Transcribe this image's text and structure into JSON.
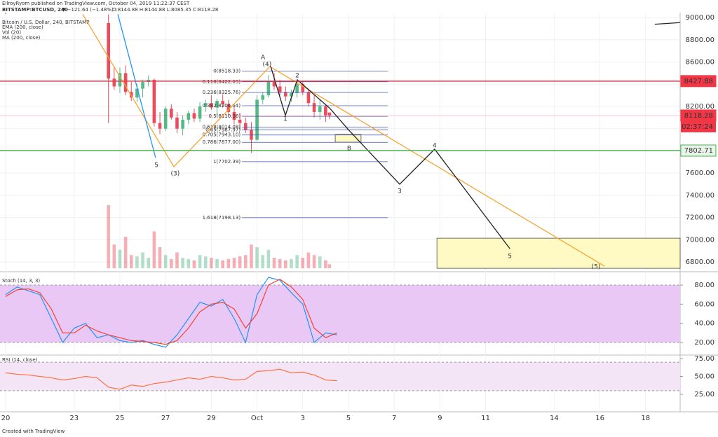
{
  "header": {
    "publisher": "EllroyRyom published on TradingView.com, October 04, 2019 11:22:37 CEST",
    "symbol": "BITSTAMP:BTCUSD, 240",
    "change": "▼ −121.64 (−1.48%)",
    "ohlc": "O:8144.88 H:8144.88 L:8085.35 C:8118.28"
  },
  "footer": "Created with TradingView",
  "chart_data": [
    {
      "type": "candlestick",
      "title": "Bitcoin / U.S. Dollar, 240, BITSTAMP",
      "indicators": [
        "EMA (200, close)",
        "Vol (20)",
        "MA (200, close)"
      ],
      "xlim": [
        -0.245,
        29.51
      ],
      "ylim": [
        6731,
        9032
      ],
      "yticks": [
        {
          "value": 9000,
          "label": "9000.00"
        },
        {
          "value": 8800,
          "label": "8800.00"
        },
        {
          "value": 8600,
          "label": "8600.00"
        },
        {
          "value": 8400,
          "label": "8400.00"
        },
        {
          "value": 8200,
          "label": "8200.00"
        },
        {
          "value": 8000,
          "label": "8000.00"
        },
        {
          "value": 7800,
          "label": "7800.00"
        },
        {
          "value": 7600,
          "label": "7600.00"
        },
        {
          "value": 7400,
          "label": "7400.00"
        },
        {
          "value": 7200,
          "label": "7200.00"
        },
        {
          "value": 7000,
          "label": "7000.00"
        },
        {
          "value": 6800,
          "label": "6800.00"
        }
      ],
      "up_color": "#53b987",
      "down_color": "#eb4d5c",
      "candles": [
        {
          "x": 4.5,
          "open": 8950,
          "high": 9030,
          "low": 8050,
          "close": 8450
        },
        {
          "x": 4.75,
          "open": 8450,
          "high": 8560,
          "low": 8350,
          "close": 8380
        },
        {
          "x": 5.0,
          "open": 8380,
          "high": 8550,
          "low": 8320,
          "close": 8500
        },
        {
          "x": 5.25,
          "open": 8500,
          "high": 8570,
          "low": 8300,
          "close": 8330
        },
        {
          "x": 5.5,
          "open": 8330,
          "high": 8420,
          "low": 8250,
          "close": 8280
        },
        {
          "x": 5.75,
          "open": 8280,
          "high": 8400,
          "low": 8240,
          "close": 8360
        },
        {
          "x": 6.0,
          "open": 8360,
          "high": 8440,
          "low": 8280,
          "close": 8420
        },
        {
          "x": 6.25,
          "open": 8420,
          "high": 8480,
          "low": 8380,
          "close": 8440
        },
        {
          "x": 6.5,
          "open": 8440,
          "high": 8450,
          "low": 8020,
          "close": 8050
        },
        {
          "x": 6.75,
          "open": 8050,
          "high": 8150,
          "low": 7950,
          "close": 8000
        },
        {
          "x": 7.0,
          "open": 8000,
          "high": 8200,
          "low": 7980,
          "close": 8180
        },
        {
          "x": 7.25,
          "open": 8180,
          "high": 8220,
          "low": 8080,
          "close": 8100
        },
        {
          "x": 7.5,
          "open": 8100,
          "high": 8150,
          "low": 7960,
          "close": 8000
        },
        {
          "x": 7.75,
          "open": 8000,
          "high": 8120,
          "low": 7940,
          "close": 8080
        },
        {
          "x": 8.0,
          "open": 8080,
          "high": 8160,
          "low": 8040,
          "close": 8140
        },
        {
          "x": 8.25,
          "open": 8140,
          "high": 8180,
          "low": 8060,
          "close": 8090
        },
        {
          "x": 8.5,
          "open": 8090,
          "high": 8240,
          "low": 8060,
          "close": 8200
        },
        {
          "x": 8.75,
          "open": 8200,
          "high": 8260,
          "low": 8150,
          "close": 8230
        },
        {
          "x": 9.0,
          "open": 8230,
          "high": 8300,
          "low": 8170,
          "close": 8190
        },
        {
          "x": 9.25,
          "open": 8190,
          "high": 8270,
          "low": 8120,
          "close": 8250
        },
        {
          "x": 9.5,
          "open": 8250,
          "high": 8310,
          "low": 8190,
          "close": 8220
        },
        {
          "x": 9.75,
          "open": 8220,
          "high": 8260,
          "low": 8120,
          "close": 8150
        },
        {
          "x": 10.0,
          "open": 8150,
          "high": 8200,
          "low": 8040,
          "close": 8080
        },
        {
          "x": 10.25,
          "open": 8080,
          "high": 8140,
          "low": 7990,
          "close": 8050
        },
        {
          "x": 10.5,
          "open": 8050,
          "high": 8100,
          "low": 7960,
          "close": 7990
        },
        {
          "x": 10.75,
          "open": 7990,
          "high": 8060,
          "low": 7780,
          "close": 7900
        },
        {
          "x": 11.0,
          "open": 7900,
          "high": 8300,
          "low": 7890,
          "close": 8260
        },
        {
          "x": 11.25,
          "open": 8260,
          "high": 8330,
          "low": 8220,
          "close": 8300
        },
        {
          "x": 11.5,
          "open": 8300,
          "high": 8480,
          "low": 8280,
          "close": 8420
        },
        {
          "x": 11.75,
          "open": 8420,
          "high": 8500,
          "low": 8350,
          "close": 8380
        },
        {
          "x": 12.0,
          "open": 8380,
          "high": 8440,
          "low": 8300,
          "close": 8330
        },
        {
          "x": 12.25,
          "open": 8330,
          "high": 8380,
          "low": 8250,
          "close": 8290
        },
        {
          "x": 12.5,
          "open": 8290,
          "high": 8350,
          "low": 8240,
          "close": 8320
        },
        {
          "x": 12.75,
          "open": 8320,
          "high": 8430,
          "low": 8280,
          "close": 8400
        },
        {
          "x": 13.0,
          "open": 8400,
          "high": 8420,
          "low": 8300,
          "close": 8330
        },
        {
          "x": 13.25,
          "open": 8330,
          "high": 8360,
          "low": 8200,
          "close": 8230
        },
        {
          "x": 13.5,
          "open": 8230,
          "high": 8300,
          "low": 8100,
          "close": 8150
        },
        {
          "x": 13.75,
          "open": 8150,
          "high": 8260,
          "low": 8080,
          "close": 8200
        },
        {
          "x": 14.0,
          "open": 8200,
          "high": 8220,
          "low": 8060,
          "close": 8120
        },
        {
          "x": 14.17,
          "open": 8144.88,
          "high": 8144.88,
          "low": 8085.35,
          "close": 8118.28
        }
      ],
      "volume": [
        2400,
        900,
        700,
        1200,
        500,
        450,
        600,
        400,
        1400,
        800,
        500,
        350,
        600,
        400,
        350,
        300,
        500,
        450,
        400,
        350,
        300,
        350,
        400,
        450,
        500,
        900,
        800,
        500,
        700,
        400,
        350,
        300,
        350,
        500,
        400,
        600,
        500,
        450,
        300,
        150
      ],
      "volume_ylim": [
        0,
        4000
      ],
      "lines": [
        {
          "color": "#f7a533",
          "x": [
            3.37,
            7.36,
            11.56,
            26.2
          ],
          "y": [
            9030,
            7657,
            8559,
            6762
          ]
        },
        {
          "color": "#2196f3",
          "x": [
            4.91,
            6.56
          ],
          "y": [
            9030,
            7739
          ]
        },
        {
          "color": "#222222",
          "x": [
            11.6,
            12.24,
            12.76,
            14.2,
            15.0,
            17.24,
            18.77,
            22.06
          ],
          "y": [
            8559,
            8120,
            8440,
            8180,
            7990,
            7500,
            7815,
            6920
          ]
        },
        {
          "color": "#222222",
          "x": [
            28.4,
            29.5
          ],
          "y": [
            8940,
            8955
          ]
        }
      ],
      "fib": {
        "color": "#3f51b5",
        "x": [
          10.34,
          16.72
        ],
        "levels": [
          {
            "label": "0(8518.33)",
            "price": 8518.33
          },
          {
            "label": "0.118(8422.05)",
            "price": 8422.05
          },
          {
            "label": "0.236(8325.76)",
            "price": 8325.76
          },
          {
            "label": "0.382(8206.64)",
            "price": 8206.64
          },
          {
            "label": "0.5(8110.36)",
            "price": 8110.36
          },
          {
            "label": "0.618(8014.08)",
            "price": 8014.08
          },
          {
            "label": "0.65(7987.97)",
            "price": 7987.97
          },
          {
            "label": "0.705(7943.10)",
            "price": 7943.1
          },
          {
            "label": "0.786(7877.00)",
            "price": 7877.0
          },
          {
            "label": "1(7702.39)",
            "price": 7702.39
          },
          {
            "label": "1.618(7198.13)",
            "price": 7198.13
          }
        ]
      },
      "price_levels": [
        {
          "value": 8427.88,
          "color": "#f23645",
          "text_color": "#ffffff"
        },
        {
          "value": 7802.71,
          "color": "#4caf50",
          "text_color": "#000000"
        },
        {
          "value": 8118.28,
          "color": "#f23645",
          "text_color": "#ffffff"
        }
      ],
      "countdown": "02:37:24",
      "boxes": [
        {
          "x": [
            14.42,
            15.55
          ],
          "y": [
            7948,
            7878
          ]
        },
        {
          "x": [
            18.87,
            29.51
          ],
          "y": [
            7014,
            6743
          ]
        }
      ],
      "box_color": "#fff9c4",
      "annotations": [
        {
          "text": "A",
          "x": 11.26,
          "y": 8641,
          "color": "#222222"
        },
        {
          "text": "(4)",
          "x": 11.44,
          "y": 8578,
          "color": "#f57c00"
        },
        {
          "text": "2",
          "x": 12.76,
          "y": 8477,
          "color": "#222222"
        },
        {
          "text": "1",
          "x": 12.24,
          "y": 8086,
          "color": "#222222"
        },
        {
          "text": "B",
          "x": 15.03,
          "y": 7821,
          "color": "#222222"
        },
        {
          "text": "3",
          "x": 17.24,
          "y": 7437,
          "color": "#222222"
        },
        {
          "text": "4",
          "x": 18.77,
          "y": 7846,
          "color": "#222222"
        },
        {
          "text": "5",
          "x": 22.06,
          "y": 6850,
          "color": "#222222"
        },
        {
          "text": "(5)",
          "x": 25.83,
          "y": 6756,
          "color": "#f57c00"
        },
        {
          "text": "(3)",
          "x": 7.42,
          "y": 7594,
          "color": "#f57c00"
        },
        {
          "text": "5",
          "x": 6.6,
          "y": 7670,
          "color": "#2196f3"
        }
      ]
    },
    {
      "type": "line",
      "title": "Stoch (14, 3, 3)",
      "xlim": [
        -0.245,
        29.51
      ],
      "ylim": [
        8.3,
        88.8
      ],
      "yticks": [
        {
          "value": 80,
          "label": "80.00"
        },
        {
          "value": 60,
          "label": "60.00"
        },
        {
          "value": 40,
          "label": "40.00"
        },
        {
          "value": 20,
          "label": "20.00"
        }
      ],
      "band": [
        20,
        80
      ],
      "band_color": "#e9c8f5",
      "x": [
        0,
        0.5,
        1,
        1.5,
        2,
        2.5,
        3,
        3.5,
        4,
        4.5,
        5,
        5.5,
        6,
        6.5,
        7,
        7.5,
        8,
        8.5,
        9,
        9.5,
        10,
        10.5,
        11,
        11.5,
        12,
        12.5,
        13,
        13.5,
        14,
        14.5
      ],
      "series": [
        {
          "color": "#2196f3",
          "values": [
            70,
            78,
            74,
            70,
            45,
            20,
            35,
            40,
            25,
            28,
            22,
            20,
            22,
            18,
            15,
            28,
            45,
            62,
            58,
            65,
            45,
            20,
            70,
            88,
            85,
            72,
            60,
            20,
            30,
            28
          ]
        },
        {
          "color": "#f44336",
          "values": [
            68,
            75,
            76,
            72,
            55,
            30,
            30,
            38,
            32,
            28,
            25,
            22,
            21,
            20,
            18,
            22,
            35,
            52,
            60,
            62,
            55,
            35,
            50,
            80,
            86,
            78,
            65,
            35,
            25,
            30
          ]
        }
      ]
    },
    {
      "type": "line",
      "title": "RSI (14, close)",
      "xlim": [
        -0.245,
        29.51
      ],
      "ylim": [
        0.5,
        78.9
      ],
      "yticks": [
        {
          "value": 75,
          "label": "75.00"
        },
        {
          "value": 50,
          "label": "50.00"
        },
        {
          "value": 25,
          "label": "25.00"
        }
      ],
      "band": [
        30,
        70
      ],
      "band_color": "#f3e5f5",
      "x": [
        0,
        0.5,
        1,
        1.5,
        2,
        2.5,
        3,
        3.5,
        4,
        4.5,
        5,
        5.5,
        6,
        6.5,
        7,
        7.5,
        8,
        8.5,
        9,
        9.5,
        10,
        10.5,
        11,
        11.5,
        12,
        12.5,
        13,
        13.5,
        14,
        14.5
      ],
      "series": [
        {
          "color": "#ff7043",
          "values": [
            55,
            53,
            52,
            50,
            48,
            45,
            47,
            50,
            48,
            35,
            32,
            38,
            36,
            40,
            42,
            45,
            48,
            46,
            50,
            48,
            45,
            46,
            57,
            58,
            60,
            55,
            56,
            52,
            45,
            44
          ]
        }
      ],
      "xticks": [
        {
          "value": 0,
          "label": "20"
        },
        {
          "value": 3,
          "label": "23"
        },
        {
          "value": 5,
          "label": "25"
        },
        {
          "value": 7,
          "label": "27"
        },
        {
          "value": 9,
          "label": "29"
        },
        {
          "value": 11,
          "label": "Oct"
        },
        {
          "value": 13,
          "label": "3"
        },
        {
          "value": 15,
          "label": "5"
        },
        {
          "value": 17,
          "label": "7"
        },
        {
          "value": 19,
          "label": "9"
        },
        {
          "value": 21,
          "label": "11"
        },
        {
          "value": 24,
          "label": "14"
        },
        {
          "value": 26,
          "label": "16"
        },
        {
          "value": 28,
          "label": "18"
        }
      ]
    }
  ]
}
